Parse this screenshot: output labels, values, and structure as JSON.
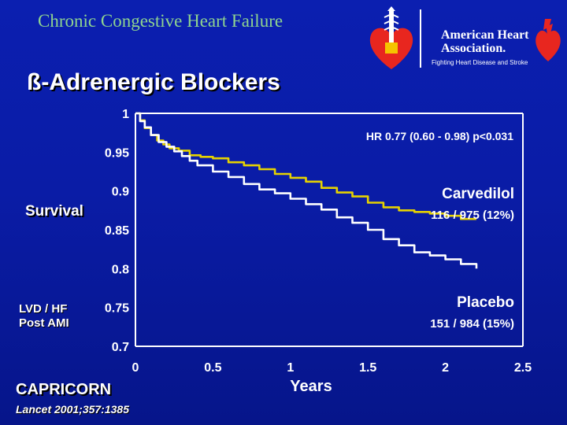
{
  "header": {
    "title": "Chronic Congestive Heart Failure",
    "logo": {
      "name": "American Heart Association.",
      "line1": "American Heart",
      "line2": "Association.",
      "tagline": "Fighting Heart Disease and Stroke"
    }
  },
  "slide_title": "ß-Adrenergic Blockers",
  "side_labels": {
    "survival": "Survival",
    "population_line1": "LVD / HF",
    "population_line2": "Post AMI"
  },
  "footer": {
    "study": "CAPRICORN",
    "reference": "Lancet 2001;357:1385"
  },
  "colors": {
    "background": "#0a1ca6",
    "carvedilol": "#e6d200",
    "placebo": "#ffffff",
    "axes": "#ffffff",
    "header_title": "#8fd48f"
  },
  "chart_data": {
    "type": "line",
    "xlabel": "Years",
    "ylabel": "Survival",
    "xlim": [
      0,
      2.5
    ],
    "ylim": [
      0.7,
      1
    ],
    "x_ticks": [
      "0",
      "0.5",
      "1",
      "1.5",
      "2",
      "2.5"
    ],
    "y_ticks": [
      "1",
      "0.95",
      "0.9",
      "0.85",
      "0.8",
      "0.75",
      "0.7"
    ],
    "grid": false,
    "annotations": {
      "hr": "HR 0.77 (0.60 - 0.98) p<0.031"
    },
    "series": [
      {
        "name": "Carvedilol",
        "detail": "116 / 975 (12%)",
        "color": "#e6d200",
        "x": [
          0,
          0.03,
          0.06,
          0.1,
          0.14,
          0.18,
          0.22,
          0.28,
          0.35,
          0.42,
          0.5,
          0.6,
          0.7,
          0.8,
          0.9,
          1.0,
          1.1,
          1.2,
          1.3,
          1.4,
          1.5,
          1.6,
          1.7,
          1.8,
          1.9,
          2.0,
          2.1,
          2.2
        ],
        "y": [
          1.0,
          0.991,
          0.981,
          0.972,
          0.965,
          0.96,
          0.955,
          0.952,
          0.946,
          0.944,
          0.942,
          0.937,
          0.933,
          0.928,
          0.922,
          0.917,
          0.912,
          0.904,
          0.898,
          0.893,
          0.885,
          0.879,
          0.875,
          0.873,
          0.871,
          0.868,
          0.864,
          0.864
        ]
      },
      {
        "name": "Placebo",
        "detail": "151 / 984 (15%)",
        "color": "#ffffff",
        "x": [
          0,
          0.03,
          0.06,
          0.1,
          0.15,
          0.2,
          0.25,
          0.3,
          0.35,
          0.4,
          0.5,
          0.6,
          0.7,
          0.8,
          0.9,
          1.0,
          1.1,
          1.2,
          1.3,
          1.4,
          1.5,
          1.6,
          1.7,
          1.8,
          1.9,
          2.0,
          2.1,
          2.2
        ],
        "y": [
          1.0,
          0.99,
          0.982,
          0.972,
          0.963,
          0.957,
          0.951,
          0.945,
          0.939,
          0.933,
          0.925,
          0.918,
          0.909,
          0.902,
          0.897,
          0.89,
          0.883,
          0.876,
          0.866,
          0.859,
          0.85,
          0.838,
          0.83,
          0.821,
          0.817,
          0.812,
          0.806,
          0.8
        ]
      }
    ]
  }
}
